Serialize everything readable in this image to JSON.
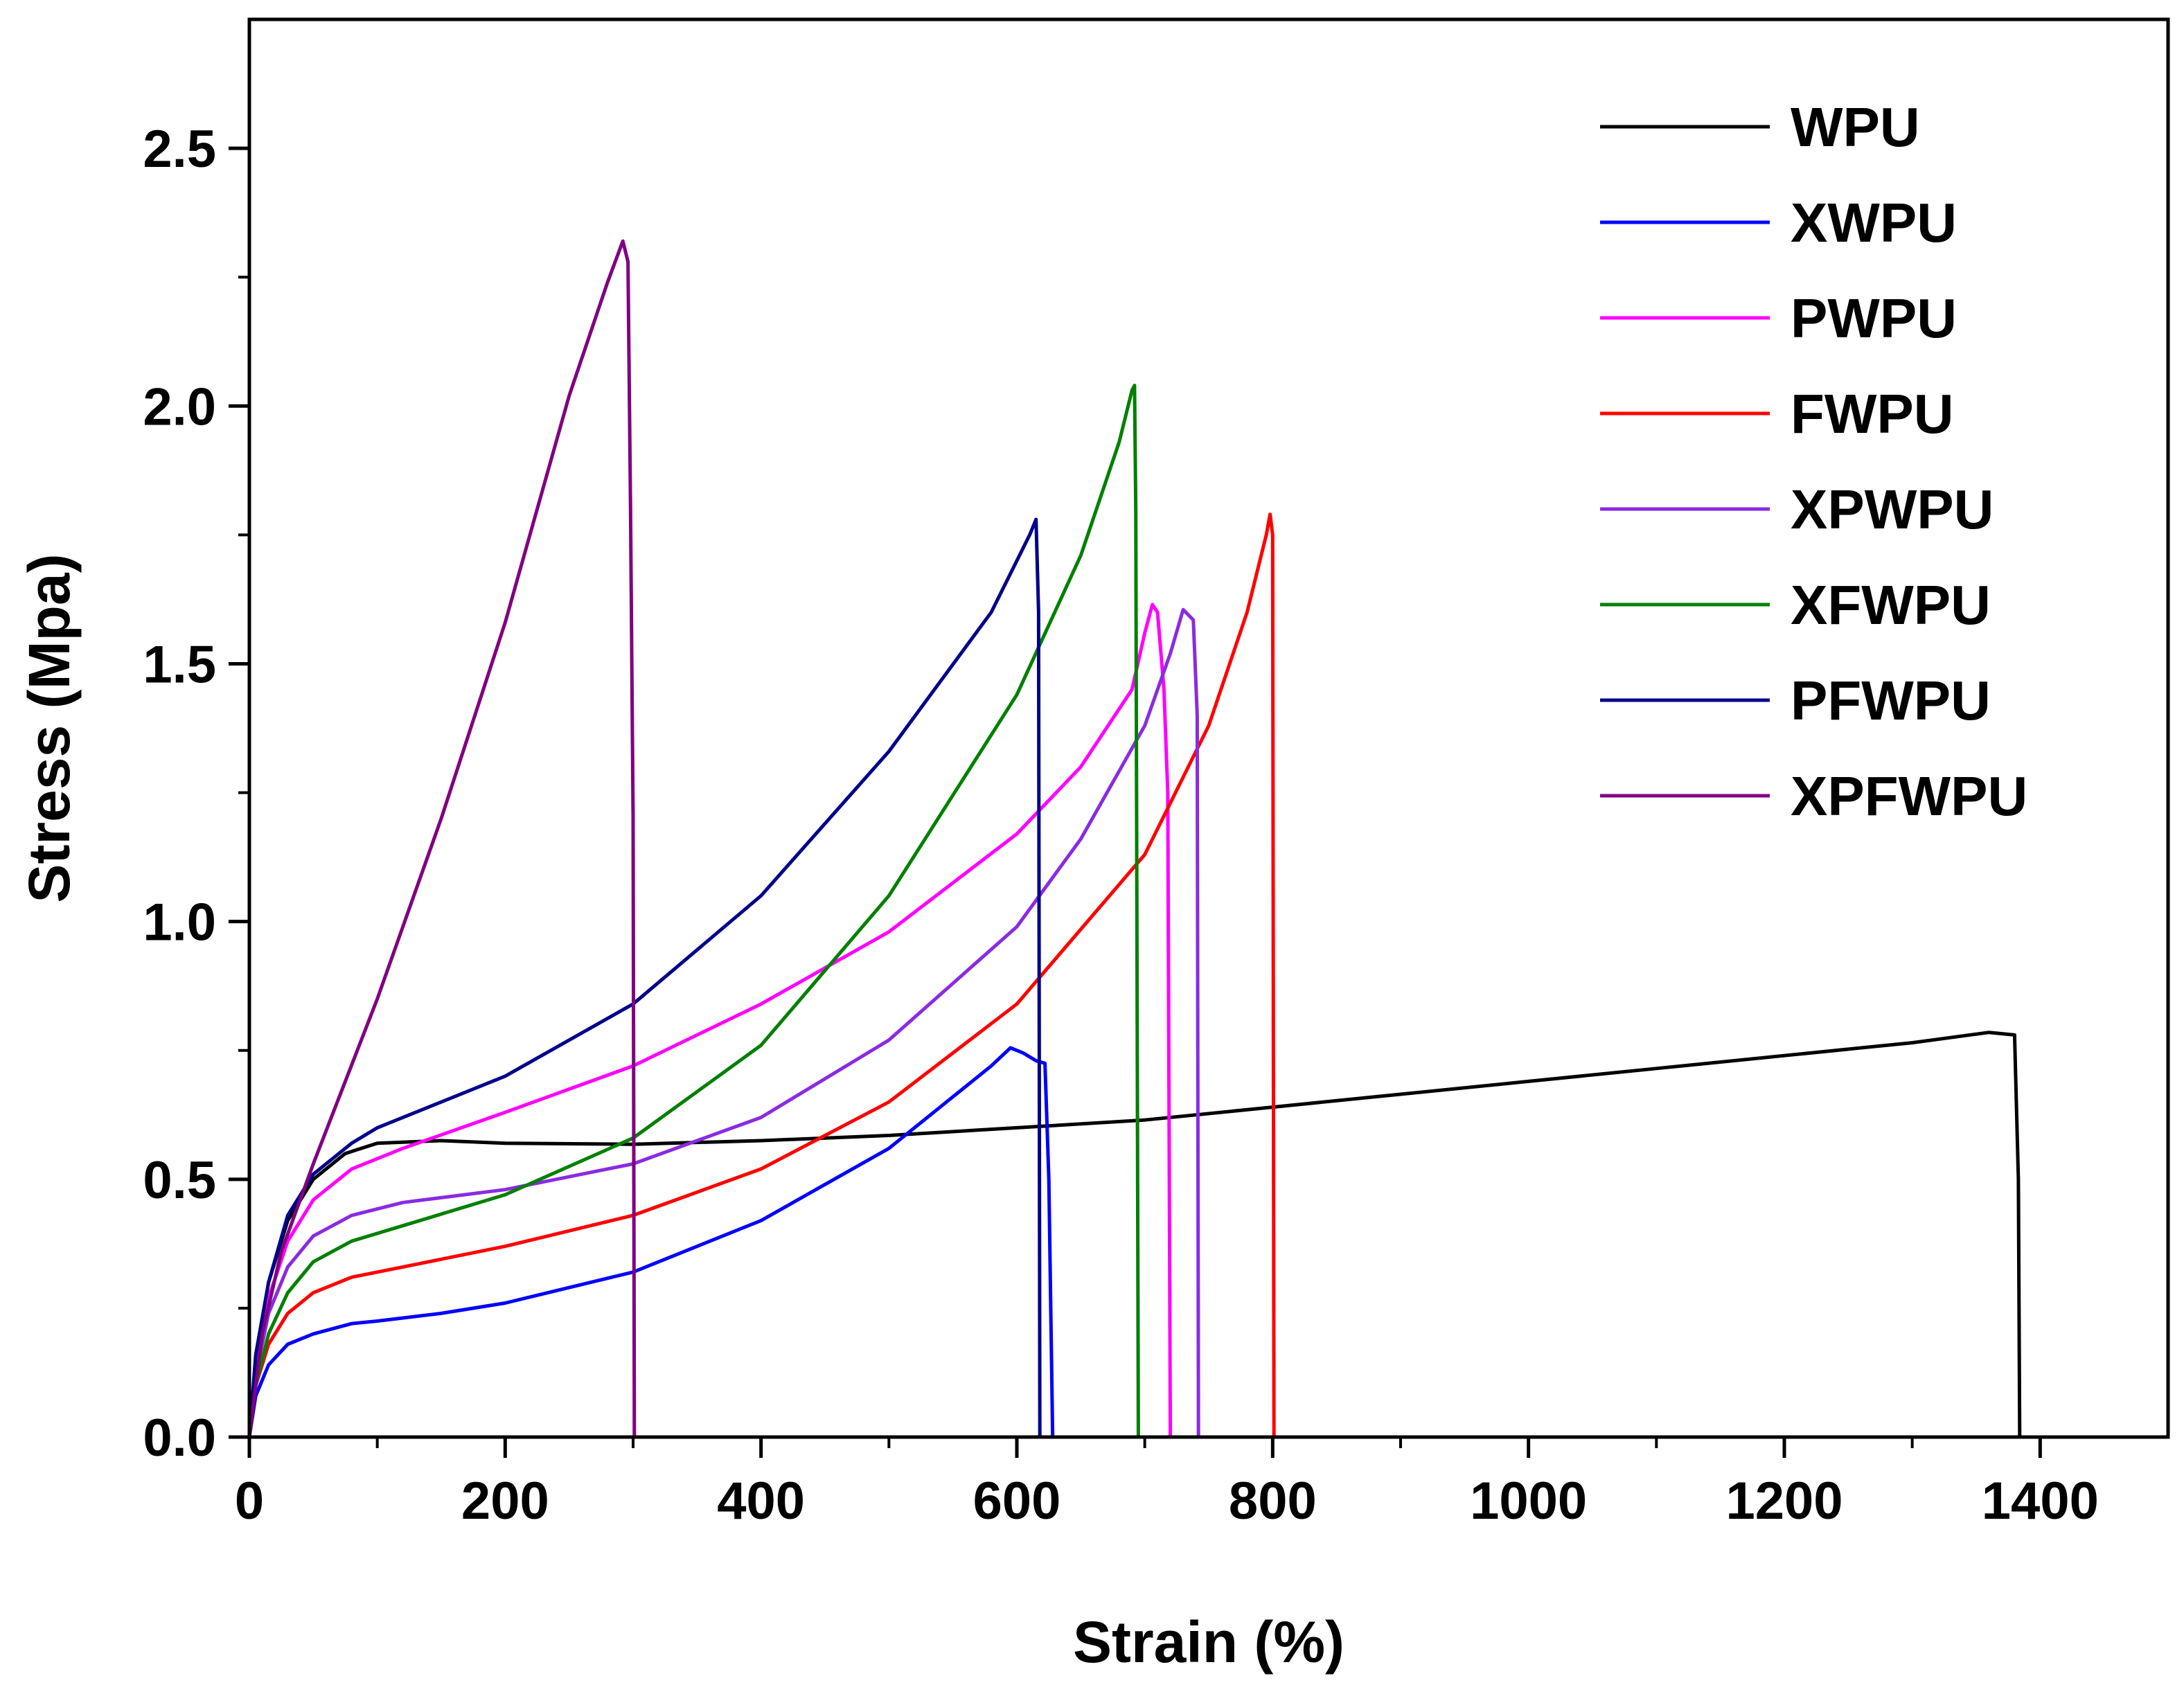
{
  "chart_data": {
    "type": "line",
    "title": "",
    "xlabel": "Strain (%)",
    "ylabel": "Stress (Mpa)",
    "xlim": [
      0,
      1500
    ],
    "ylim": [
      0,
      2.75
    ],
    "xticks": [
      0,
      200,
      400,
      600,
      800,
      1000,
      1200,
      1400
    ],
    "xtick_labels": [
      "0",
      "200",
      "400",
      "600",
      "800",
      "1000",
      "1200",
      "1400"
    ],
    "yticks": [
      0.0,
      0.5,
      1.0,
      1.5,
      2.0,
      2.5
    ],
    "ytick_labels": [
      "0.0",
      "0.5",
      "1.0",
      "1.5",
      "2.0",
      "2.5"
    ],
    "grid": false,
    "legend_position": "top-right",
    "series": [
      {
        "name": "WPU",
        "color": "#000000",
        "points": [
          [
            0,
            0
          ],
          [
            5,
            0.15
          ],
          [
            15,
            0.3
          ],
          [
            30,
            0.42
          ],
          [
            50,
            0.5
          ],
          [
            75,
            0.55
          ],
          [
            100,
            0.57
          ],
          [
            150,
            0.575
          ],
          [
            200,
            0.57
          ],
          [
            300,
            0.568
          ],
          [
            400,
            0.575
          ],
          [
            500,
            0.585
          ],
          [
            600,
            0.6
          ],
          [
            700,
            0.615
          ],
          [
            800,
            0.64
          ],
          [
            900,
            0.665
          ],
          [
            1000,
            0.69
          ],
          [
            1100,
            0.715
          ],
          [
            1200,
            0.74
          ],
          [
            1300,
            0.765
          ],
          [
            1360,
            0.785
          ],
          [
            1380,
            0.78
          ],
          [
            1383,
            0.5
          ],
          [
            1384,
            0
          ]
        ]
      },
      {
        "name": "XWPU",
        "color": "#0000ff",
        "points": [
          [
            0,
            0
          ],
          [
            5,
            0.08
          ],
          [
            15,
            0.14
          ],
          [
            30,
            0.18
          ],
          [
            50,
            0.2
          ],
          [
            80,
            0.22
          ],
          [
            100,
            0.225
          ],
          [
            150,
            0.24
          ],
          [
            200,
            0.26
          ],
          [
            300,
            0.32
          ],
          [
            400,
            0.42
          ],
          [
            500,
            0.56
          ],
          [
            550,
            0.66
          ],
          [
            580,
            0.72
          ],
          [
            595,
            0.755
          ],
          [
            605,
            0.745
          ],
          [
            615,
            0.73
          ],
          [
            622,
            0.725
          ],
          [
            625,
            0.5
          ],
          [
            628,
            0
          ]
        ]
      },
      {
        "name": "PWPU",
        "color": "#ff00ff",
        "points": [
          [
            0,
            0
          ],
          [
            5,
            0.15
          ],
          [
            15,
            0.27
          ],
          [
            30,
            0.38
          ],
          [
            50,
            0.46
          ],
          [
            80,
            0.52
          ],
          [
            120,
            0.56
          ],
          [
            200,
            0.63
          ],
          [
            300,
            0.72
          ],
          [
            400,
            0.84
          ],
          [
            500,
            0.98
          ],
          [
            600,
            1.17
          ],
          [
            650,
            1.3
          ],
          [
            690,
            1.45
          ],
          [
            700,
            1.56
          ],
          [
            706,
            1.615
          ],
          [
            710,
            1.6
          ],
          [
            715,
            1.45
          ],
          [
            718,
            1.25
          ],
          [
            720,
            0
          ]
        ]
      },
      {
        "name": "FWPU",
        "color": "#ff0000",
        "points": [
          [
            0,
            0
          ],
          [
            5,
            0.1
          ],
          [
            15,
            0.18
          ],
          [
            30,
            0.24
          ],
          [
            50,
            0.28
          ],
          [
            80,
            0.31
          ],
          [
            120,
            0.33
          ],
          [
            200,
            0.37
          ],
          [
            300,
            0.43
          ],
          [
            400,
            0.52
          ],
          [
            500,
            0.65
          ],
          [
            600,
            0.84
          ],
          [
            700,
            1.13
          ],
          [
            750,
            1.38
          ],
          [
            780,
            1.6
          ],
          [
            795,
            1.75
          ],
          [
            798,
            1.79
          ],
          [
            800,
            1.75
          ],
          [
            801,
            0
          ]
        ]
      },
      {
        "name": "XPWPU",
        "color": "#8a2be2",
        "points": [
          [
            0,
            0
          ],
          [
            5,
            0.12
          ],
          [
            15,
            0.24
          ],
          [
            30,
            0.33
          ],
          [
            50,
            0.39
          ],
          [
            80,
            0.43
          ],
          [
            120,
            0.455
          ],
          [
            200,
            0.48
          ],
          [
            300,
            0.53
          ],
          [
            400,
            0.62
          ],
          [
            500,
            0.77
          ],
          [
            600,
            0.99
          ],
          [
            650,
            1.16
          ],
          [
            700,
            1.38
          ],
          [
            720,
            1.52
          ],
          [
            730,
            1.605
          ],
          [
            738,
            1.585
          ],
          [
            741,
            1.4
          ],
          [
            742,
            0
          ]
        ]
      },
      {
        "name": "XFWPU",
        "color": "#008000",
        "points": [
          [
            0,
            0
          ],
          [
            5,
            0.1
          ],
          [
            15,
            0.2
          ],
          [
            30,
            0.28
          ],
          [
            50,
            0.34
          ],
          [
            80,
            0.38
          ],
          [
            120,
            0.41
          ],
          [
            200,
            0.47
          ],
          [
            300,
            0.58
          ],
          [
            400,
            0.76
          ],
          [
            500,
            1.05
          ],
          [
            600,
            1.44
          ],
          [
            650,
            1.71
          ],
          [
            680,
            1.93
          ],
          [
            690,
            2.03
          ],
          [
            692,
            2.04
          ],
          [
            693,
            1.8
          ],
          [
            695,
            0
          ]
        ]
      },
      {
        "name": "PFWPU",
        "color": "#00008b",
        "points": [
          [
            0,
            0
          ],
          [
            5,
            0.16
          ],
          [
            15,
            0.3
          ],
          [
            30,
            0.43
          ],
          [
            50,
            0.51
          ],
          [
            80,
            0.57
          ],
          [
            100,
            0.6
          ],
          [
            150,
            0.65
          ],
          [
            200,
            0.7
          ],
          [
            300,
            0.84
          ],
          [
            400,
            1.05
          ],
          [
            500,
            1.33
          ],
          [
            580,
            1.6
          ],
          [
            610,
            1.75
          ],
          [
            615,
            1.78
          ],
          [
            617,
            1.6
          ],
          [
            618,
            0
          ]
        ]
      },
      {
        "name": "XPFWPU",
        "color": "#800080",
        "points": [
          [
            0,
            0
          ],
          [
            10,
            0.2
          ],
          [
            25,
            0.36
          ],
          [
            50,
            0.53
          ],
          [
            100,
            0.85
          ],
          [
            150,
            1.2
          ],
          [
            200,
            1.58
          ],
          [
            250,
            2.02
          ],
          [
            280,
            2.24
          ],
          [
            292,
            2.32
          ],
          [
            296,
            2.28
          ],
          [
            298,
            1.8
          ],
          [
            300,
            1.2
          ],
          [
            301,
            0
          ]
        ]
      }
    ]
  }
}
